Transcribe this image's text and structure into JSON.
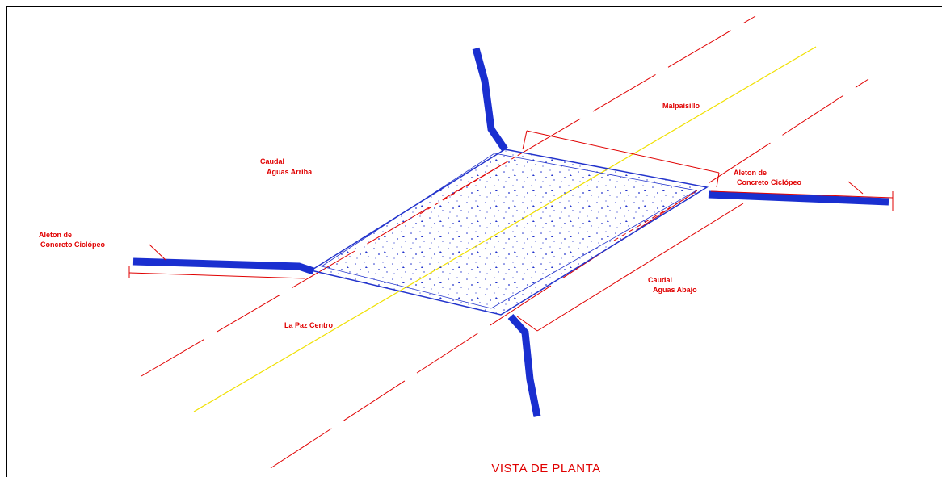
{
  "labels": {
    "malpaisillo": "Malpaisillo",
    "upstream": [
      "Caudal",
      "Aguas Arriba"
    ],
    "downstream": [
      "Caudal",
      "Aguas Abajo"
    ],
    "wing_left": [
      "Aleton de",
      "Concreto Ciclópeo"
    ],
    "wing_right": [
      "Aleton de",
      "Concreto Ciclópeo"
    ],
    "la_paz": "La Paz Centro"
  },
  "title": "VISTA DE PLANTA"
}
